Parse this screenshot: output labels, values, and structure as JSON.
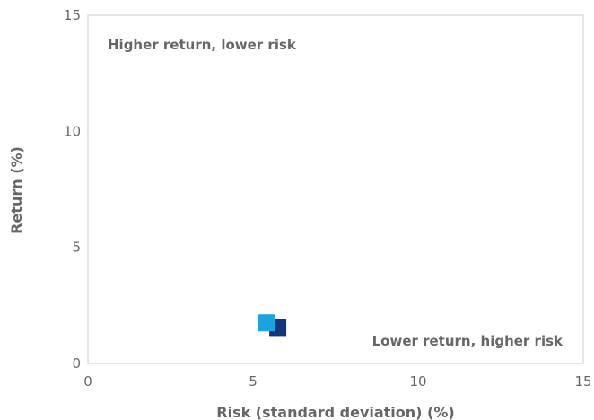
{
  "chart_data": {
    "type": "scatter",
    "title": "",
    "xlabel": "Risk (standard deviation) (%)",
    "ylabel": "Return (%)",
    "xlim": [
      0,
      15
    ],
    "ylim": [
      0,
      15
    ],
    "xticks": [
      "0",
      "5",
      "10",
      "15"
    ],
    "yticks": [
      "0",
      "5",
      "10",
      "15"
    ],
    "grid": false,
    "series": [
      {
        "x": 5.75,
        "y": 1.55,
        "color": "#13357a"
      },
      {
        "x": 5.4,
        "y": 1.75,
        "color": "#1aa3e0"
      }
    ],
    "annotations": [
      {
        "text": "Higher return, lower risk",
        "position": "top-left"
      },
      {
        "text": "Lower return, higher risk",
        "position": "bottom-right"
      }
    ]
  }
}
